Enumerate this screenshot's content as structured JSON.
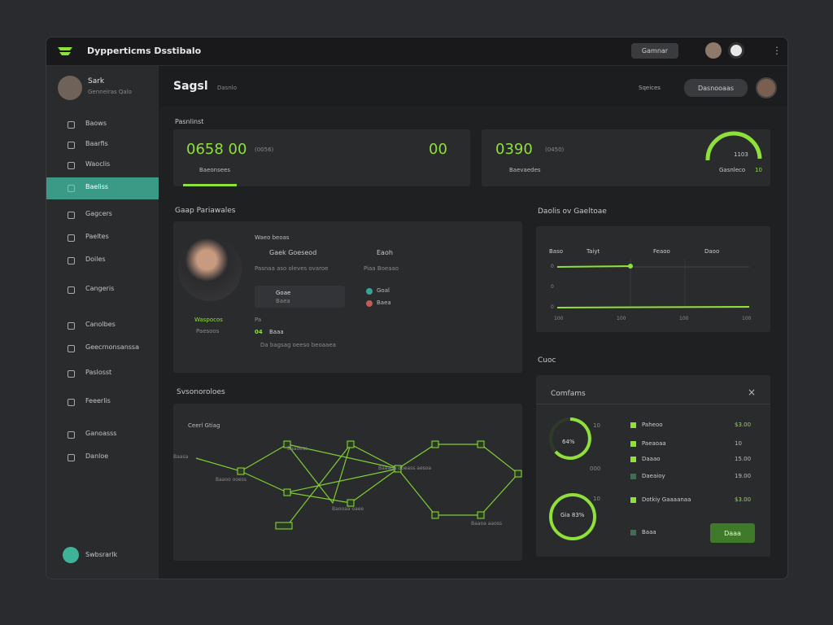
{
  "header": {
    "title": "Dypperticms Dsstibalo",
    "button": "Gamnar"
  },
  "sidebar": {
    "user_name": "Sark",
    "user_role": "Genneiras Qalo",
    "items": [
      "Baows",
      "Baarfis",
      "Waoclis",
      "Baeliss",
      "Gagcers",
      "Paeltes",
      "Doiles",
      "Cangeris",
      "Canolbes",
      "Geecrnonsanssa",
      "Paslosst",
      "Feeerlis",
      "Ganoasss",
      "Danloe"
    ],
    "footer": "Swbsrarlk"
  },
  "topbar": {
    "title": "Sagsl",
    "subtitle": "Dasnlo",
    "search": "Sqeices",
    "button": "Dasnooaas"
  },
  "stats": {
    "label": "Pasnlinst",
    "card1": {
      "value": "0658 00",
      "note": "(0056)",
      "side": "00",
      "link": "Baeonsees"
    },
    "card2": {
      "value": "0390",
      "note": "(0450)",
      "link": "Baevaedes",
      "gauge": "1103",
      "gauge_label": "Gasnleco",
      "gauge_note": "10"
    }
  },
  "profile": {
    "title": "Gaap Pariawales",
    "name": "Waspocos",
    "role": "Paesoos",
    "heading": "Waeo beoas",
    "field1": "Gaek Goeseod",
    "field2": "Eaoh",
    "line1": "Pasnaa aso oleves ovaroe",
    "line2": "Piaa Boeaao",
    "box_title": "Goae",
    "box_sub": "Baea",
    "dot1": "Goal",
    "dot2": "Baea",
    "small": "Pa",
    "code": "04",
    "code_label": "Baaa",
    "footer": "Da bagsag oeeso beoaaea"
  },
  "chart": {
    "title": "Daolis ov Gaeltoae",
    "labels": [
      "Baso",
      "Taiyt",
      "Feaoo",
      "Daoo"
    ],
    "y_labels": [
      "0",
      "0",
      "0"
    ],
    "x_labels": [
      "100",
      "100",
      "100",
      "100"
    ]
  },
  "network": {
    "title": "Svsonoroloes",
    "subtitle": "Ceerl Gtiag",
    "nodes": [
      "Baasa",
      "Baaoo ooess",
      "Baaoess",
      "Baaaoa ooeass aesoa",
      "Baooaa oaee",
      "Baaoa aaoss"
    ]
  },
  "panel": {
    "title": "Cuoc",
    "card_title": "Comfams",
    "gauge1": "64%",
    "gauge1_note": "10",
    "gauge2": "Gia 83%",
    "gauge2_note": "10",
    "legend": "000",
    "rows": [
      {
        "label": "Paheoo",
        "value": "$3.00"
      },
      {
        "label": "Paeaoaa",
        "value": "10"
      },
      {
        "label": "Daaao",
        "value": "15.00"
      },
      {
        "label": "Daeaioy",
        "value": "19.00"
      },
      {
        "label": "Dotkiy Gaaaanaa",
        "value": "$3.00"
      },
      {
        "label": "Baaa",
        "value": ""
      }
    ],
    "button": "Daaa"
  }
}
